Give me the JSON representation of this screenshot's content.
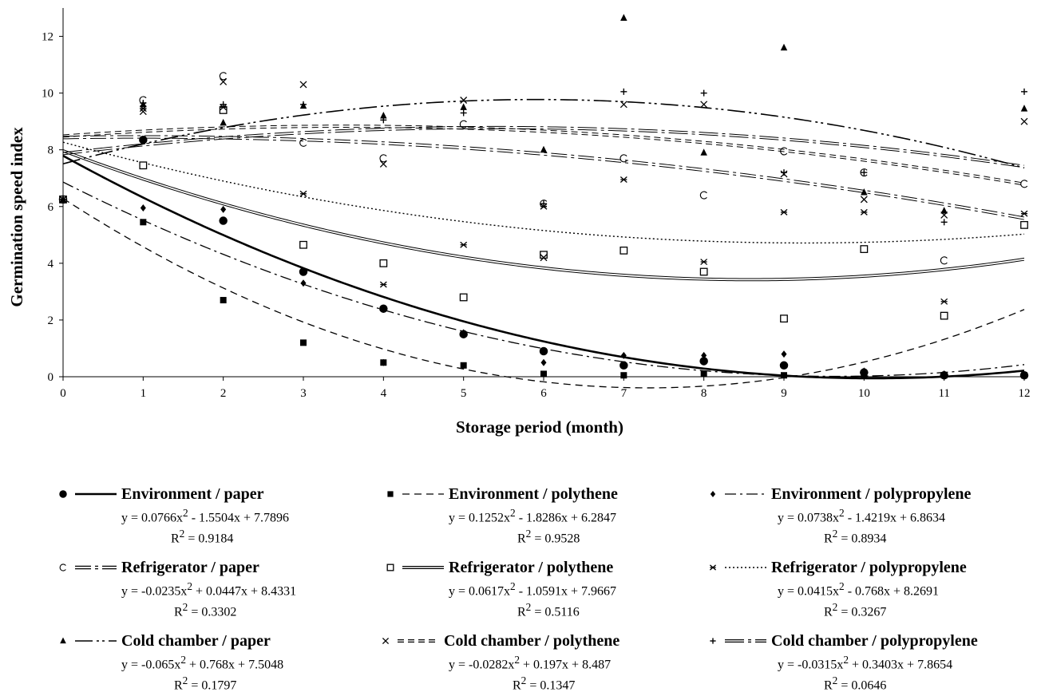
{
  "chart_data": {
    "type": "scatter",
    "xlabel": "Storage period (month)",
    "ylabel": "Germination speed index",
    "xlim": [
      0,
      12
    ],
    "ylim": [
      0,
      13
    ],
    "x_ticks": [
      "0",
      "1",
      "2",
      "3",
      "4",
      "5",
      "6",
      "7",
      "8",
      "9",
      "10",
      "11",
      "12"
    ],
    "y_ticks": [
      "0",
      "2",
      "4",
      "6",
      "8",
      "10",
      "12"
    ],
    "grid": false,
    "legend_position": "bottom",
    "r2_label": "R",
    "series": [
      {
        "name": "Environment / paper",
        "marker": "filled-circle",
        "line": "solid-thick",
        "x": [
          0,
          1,
          2,
          3,
          4,
          5,
          6,
          7,
          8,
          9,
          10,
          11,
          12
        ],
        "y": [
          6.25,
          8.35,
          5.5,
          3.7,
          2.4,
          1.5,
          0.9,
          0.4,
          0.55,
          0.4,
          0.15,
          0.05,
          0.05
        ],
        "coef": [
          0.0766,
          -1.5504,
          7.7896
        ],
        "equation": "y = 0.0766x",
        "equation_rest": " - 1.5504x + 7.7896",
        "r2": " = 0.9184"
      },
      {
        "name": "Environment / polythene",
        "marker": "filled-square",
        "line": "dashed",
        "x": [
          0,
          1,
          2,
          3,
          4,
          5,
          6,
          7,
          8,
          9,
          10,
          11,
          12
        ],
        "y": [
          6.25,
          5.45,
          2.7,
          1.2,
          0.5,
          0.4,
          0.1,
          0.05,
          0.1,
          0.05,
          0.05,
          0.05,
          0.05
        ],
        "coef": [
          0.1252,
          -1.8286,
          6.2847
        ],
        "equation": "y = 0.1252x",
        "equation_rest": " - 1.8286x + 6.2847",
        "r2": " = 0.9528"
      },
      {
        "name": "Environment / polypropylene",
        "marker": "filled-diamond",
        "line": "dash-dot",
        "x": [
          0,
          1,
          2,
          3,
          4,
          5,
          6,
          7,
          8,
          9,
          10,
          11,
          12
        ],
        "y": [
          6.25,
          5.95,
          5.9,
          3.3,
          0.5,
          1.55,
          0.5,
          0.75,
          0.75,
          0.8,
          0.2,
          0.1,
          0.05
        ],
        "coef": [
          0.0738,
          -1.4219,
          6.8634
        ],
        "equation": "y = 0.0738x",
        "equation_rest": " - 1.4219x + 6.8634",
        "r2": " = 0.8934"
      },
      {
        "name": "Refrigerator / paper",
        "marker": "open-arc",
        "line": "double-dash-dot",
        "x": [
          0,
          1,
          2,
          3,
          4,
          5,
          6,
          7,
          8,
          9,
          10,
          11,
          12
        ],
        "y": [
          6.25,
          9.75,
          10.6,
          8.25,
          7.7,
          8.9,
          6.1,
          7.7,
          6.4,
          7.95,
          7.2,
          4.1,
          6.8
        ],
        "coef": [
          -0.0235,
          0.0447,
          8.4331
        ],
        "equation": "y = -0.0235x",
        "equation_rest": " + 0.0447x + 8.4331",
        "r2": " = 0.3302"
      },
      {
        "name": "Refrigerator / polythene",
        "marker": "open-square",
        "line": "double-solid",
        "x": [
          0,
          1,
          2,
          3,
          4,
          5,
          6,
          7,
          8,
          9,
          10,
          11,
          12
        ],
        "y": [
          6.25,
          7.45,
          9.4,
          4.65,
          4.0,
          2.8,
          4.3,
          4.45,
          3.7,
          2.05,
          4.5,
          2.15,
          5.35
        ],
        "coef": [
          0.0617,
          -1.0591,
          7.9667
        ],
        "equation": "y = 0.0617x",
        "equation_rest": " - 1.0591x + 7.9667",
        "r2": " = 0.5116"
      },
      {
        "name": "Refrigerator / polypropylene",
        "marker": "asterisk",
        "line": "dotted",
        "x": [
          0,
          1,
          2,
          3,
          4,
          5,
          6,
          7,
          8,
          9,
          10,
          11,
          12
        ],
        "y": [
          6.25,
          9.45,
          9.5,
          6.45,
          3.25,
          4.65,
          6.0,
          6.95,
          4.05,
          5.8,
          5.8,
          2.65,
          5.75
        ],
        "coef": [
          0.0415,
          -0.768,
          8.2691
        ],
        "equation": "y = 0.0415x",
        "equation_rest": " - 0.768x + 8.2691",
        "r2": " = 0.3267"
      },
      {
        "name": "Cold chamber / paper",
        "marker": "filled-triangle",
        "line": "long-dash-dot-dot",
        "x": [
          0,
          1,
          2,
          3,
          4,
          5,
          6,
          7,
          8,
          9,
          10,
          11,
          12
        ],
        "y": [
          6.25,
          9.6,
          8.95,
          9.55,
          9.2,
          9.5,
          8.0,
          12.65,
          7.9,
          11.6,
          6.5,
          5.85,
          9.45
        ],
        "coef": [
          -0.065,
          0.768,
          7.5048
        ],
        "equation": "y = -0.065x",
        "equation_rest": " + 0.768x + 7.5048",
        "r2": " = 0.1797"
      },
      {
        "name": "Cold chamber / polythene",
        "marker": "x-cross",
        "line": "double-dashed",
        "x": [
          0,
          1,
          2,
          3,
          4,
          5,
          6,
          7,
          8,
          9,
          10,
          11,
          12
        ],
        "y": [
          6.25,
          9.35,
          10.4,
          10.3,
          7.5,
          9.75,
          4.2,
          9.6,
          9.6,
          7.15,
          6.25,
          5.7,
          9.0
        ],
        "coef": [
          -0.0282,
          0.197,
          8.487
        ],
        "equation": "y = -0.0282x",
        "equation_rest": " + 0.197x + 8.487",
        "r2": " = 0.1347"
      },
      {
        "name": "Cold chamber / polypropylene",
        "marker": "plus",
        "line": "double-long-dash-dot",
        "x": [
          0,
          1,
          2,
          3,
          4,
          5,
          6,
          7,
          8,
          9,
          10,
          11,
          12
        ],
        "y": [
          6.25,
          9.65,
          9.6,
          9.6,
          9.05,
          9.3,
          6.1,
          10.05,
          10.0,
          7.2,
          7.2,
          5.45,
          10.05
        ],
        "coef": [
          -0.0315,
          0.3403,
          7.8654
        ],
        "equation": "y = -0.0315x",
        "equation_rest": " + 0.3403x + 7.8654",
        "r2": " = 0.0646"
      }
    ]
  }
}
